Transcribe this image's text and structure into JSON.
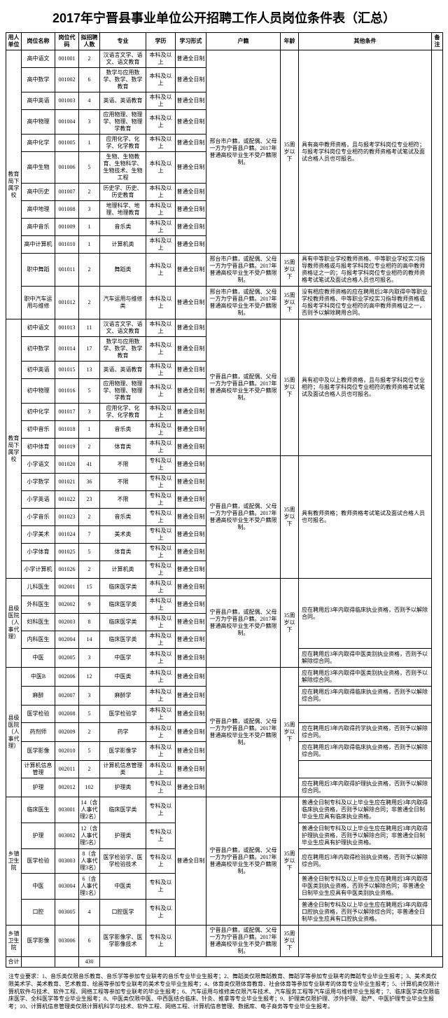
{
  "title": "2017年宁晋县事业单位公开招聘工作人员岗位条件表（汇总）",
  "headers": [
    "用人单位",
    "岗位名称",
    "岗位代码",
    "拟招聘人数",
    "专业",
    "学历",
    "学习形式",
    "户籍",
    "年龄",
    "其他条件",
    "备注"
  ],
  "edu_bk": "本科及以上",
  "edu_zk": "专科及以上",
  "study_full": "普通全日制",
  "age_35": "35周岁以下",
  "dept_edu": "教育局下属学校",
  "hukou_xt": "邢台市户籍，或配偶、父母一方为宁晋县户籍。2017年普通高校毕业生不受户籍限制。",
  "hukou_nj": "宁晋县户籍，或配偶、父母一方为宁晋县户籍。2017年普通高校毕业生不受户籍限制。",
  "other_gaozhong": "具有高中教师资格，且与报考学科岗位专业相符；与报考学科岗位专业相符的教师资格考试笔试及面试合格人员也可报名。",
  "other_wudao": "具有中等职业学校教师资格、中等职业学校实习指导教师资格或与报考学科岗位专业相符的高中教师资格证之一的；与报考学科岗位专业相符的教师资格考试笔试及面试合格人员也可报名。",
  "other_qiche": "没有相应教师资格的应在聘用后2年内取得中等职业学校教师资格、中等职业学校实习指导教师资格或与报考学科岗位专业相符的高中教师资格证之一，否则予以解除聘用合同。",
  "other_chuzhong": "具有初中及以上教师资格，且与报考学科岗位专业相符；与报考学科岗位专业相符的教师资格考试笔试及面试合格人员也可报名。",
  "other_xiaoxue": "具有教师资格；教师资格考试笔试及面试合格人员也可报名。",
  "gaozhong": [
    {
      "post": "高中语文",
      "code": "001001",
      "num": "2",
      "major": "汉语言文学、语文、语文教育"
    },
    {
      "post": "高中数学",
      "code": "001002",
      "num": "6",
      "major": "数学与应用数学、数学、数学教育"
    },
    {
      "post": "高中英语",
      "code": "001003",
      "num": "4",
      "major": "英语、英语教育"
    },
    {
      "post": "高中物理",
      "code": "001004",
      "num": "3",
      "major": "应用物理、物理学、物理、物理学教育"
    },
    {
      "post": "高中化学",
      "code": "001005",
      "num": "1",
      "major": "应用化学、化学、化学教育"
    },
    {
      "post": "高中生物",
      "code": "001006",
      "num": "5",
      "major": "生物、生物教育、生物科学、生物技术、生物工程"
    },
    {
      "post": "高中历史",
      "code": "001007",
      "num": "2",
      "major": "历史学、历史、历史教育"
    },
    {
      "post": "高中地理",
      "code": "001008",
      "num": "3",
      "major": "地理科学、地理、地理教育"
    },
    {
      "post": "高中音乐",
      "code": "001009",
      "num": "1",
      "major": "音乐类"
    },
    {
      "post": "高中计算机",
      "code": "001010",
      "num": "1",
      "major": "计算机类"
    }
  ],
  "wudao": {
    "post": "职中舞蹈",
    "code": "001011",
    "num": "2",
    "major": "舞蹈类"
  },
  "qiche": {
    "post": "职中汽车运用与维修",
    "code": "001012",
    "num": "2",
    "major": "汽车运用与维修类"
  },
  "chuzhong": [
    {
      "post": "初中语文",
      "code": "001013",
      "num": "11",
      "major": "汉语言文学、语文、语文教育"
    },
    {
      "post": "初中数学",
      "code": "001014",
      "num": "17",
      "major": "数学与应用数学、数学、数学教育"
    },
    {
      "post": "初中英语",
      "code": "001015",
      "num": "13",
      "major": "英语、英语教育"
    },
    {
      "post": "初中物理",
      "code": "001016",
      "num": "5",
      "major": "应用物理、物理学、物理、物理学教育"
    },
    {
      "post": "初中化学",
      "code": "001017",
      "num": "3",
      "major": "应用化学、化学、化学教育"
    },
    {
      "post": "初中音乐",
      "code": "001018",
      "num": "1",
      "major": "音乐类"
    },
    {
      "post": "初中体育",
      "code": "001019",
      "num": "2",
      "major": "体育类"
    }
  ],
  "xiaoxue": [
    {
      "post": "小学语文",
      "code": "001020",
      "num": "41",
      "major": "不限"
    },
    {
      "post": "小学数学",
      "code": "001021",
      "num": "36",
      "major": "不限"
    },
    {
      "post": "小学英语",
      "code": "001022",
      "num": "23",
      "major": "不限"
    },
    {
      "post": "小学音乐",
      "code": "001023",
      "num": "2",
      "major": "音乐类"
    },
    {
      "post": "小学美术",
      "code": "001024",
      "num": "7",
      "major": "美术类"
    },
    {
      "post": "小学体育",
      "code": "001025",
      "num": "5",
      "major": "体育类"
    },
    {
      "post": "小学计算机",
      "code": "001026",
      "num": "2",
      "major": "计算机类"
    }
  ],
  "dept_hosp1": "县级医院（人事代理）",
  "hosp1_a": [
    {
      "post": "儿科医生",
      "code": "002001",
      "num": "15",
      "major": "临床医学类"
    },
    {
      "post": "外科医生",
      "code": "002002",
      "num": "9",
      "major": "临床医学类"
    },
    {
      "post": "妇科医生",
      "code": "002003",
      "num": "8",
      "major": "临床医学类"
    },
    {
      "post": "内科医生",
      "code": "002004",
      "num": "14",
      "major": "临床医学类"
    }
  ],
  "other_hosp_linchuang": "应在聘用后3年内取得临床执业资格，否则予以解除合同。",
  "hosp1_zy": {
    "post": "中医",
    "code": "002005",
    "num": "3",
    "major": "中医学"
  },
  "other_hosp_zhongyi1": "应在聘用后3年内取得中医类别执业资格，否则予以解除综合同。",
  "hosp2_a": [
    {
      "post": "中医B",
      "code": "002006",
      "num": "12",
      "major": "中医类",
      "other": "应在聘用后3年内取得中医类别执业资格，否则予以解除综合同。"
    },
    {
      "post": "麻醉",
      "code": "002007",
      "num": "3",
      "major": "麻醉学",
      "other": "应在聘用后3年内取得临床执业资格，否则予以解除综合同。"
    },
    {
      "post": "医学检验",
      "code": "002008",
      "num": "5",
      "major": "医学检验学",
      "other": ""
    },
    {
      "post": "药剂师",
      "code": "002009",
      "num": "2",
      "major": "药学",
      "other": "应在聘用后3年内取得药学执业资格，否则予以解除综合同。"
    },
    {
      "post": "医学影像",
      "code": "002010",
      "num": "5",
      "major": "医学影像学",
      "other": "应在聘用后3年内取得临床执业资格，否则予以解除综合同。"
    },
    {
      "post": "计算机信息管理",
      "code": "002011",
      "num": "2",
      "major": "计算机信息管理类",
      "other": ""
    },
    {
      "post": "护理",
      "code": "002012",
      "num": "102",
      "major": "护理类",
      "edu": "专科及以上",
      "other": "应在聘用后3年内取得护理执业资格，否则予以解除综合同。"
    }
  ],
  "dept_township": "乡镇卫生院",
  "township": [
    {
      "post": "临床医生",
      "code": "003001",
      "num": "14（含人事代理2名）",
      "major": "临床医学类",
      "other": "普通全日制专科及以上毕业生应在聘用后3年内取得临床执业资格，否则予以解除合同；非普通全日制毕业生应具有临床执业资格。"
    },
    {
      "post": "护理",
      "code": "003002",
      "num": "12（含人事代理5名）",
      "major": "护理类",
      "other": "普通全日制专科及以上毕业生应在聘用后3年内取得护理执业资格，否则予以解除合同；非普通全日制毕业生应具有护理执业资格。"
    },
    {
      "post": "医学检验",
      "code": "003003",
      "num": "8（含人事代理3名）",
      "major": "医学检验学、医学检验技术",
      "other": "应在聘用后3年内取得检验执业资格，否则予以解除综合同。"
    },
    {
      "post": "中医",
      "code": "003004",
      "num": "6（含人事代理1名）",
      "major": "中医类",
      "other": "普通全日制专科及以上毕业生应在聘用后3年内取得中医类别执业资格，否则予以解除合同；非普通全日制毕业生应具有中医类别执业资格。"
    },
    {
      "post": "口腔",
      "code": "003005",
      "num": "4",
      "major": "口腔医学",
      "other": "普通全日制专科及以上毕业生应在聘用后3年内取得口腔执业资格，否则予以解除综合同；非普通全日制毕业生应具有口腔执业资格。"
    }
  ],
  "dept_township2": "乡镇卫生院",
  "township2": {
    "post": "医学影像",
    "code": "003006",
    "num": "6",
    "major": "医学影像学、医学影像技术"
  },
  "total_label": "合计",
  "total_num": "430",
  "footnote": "注专业要求：1、音乐类仅限音乐教育、音乐学等参加专业联考的音乐专业毕业生报考；2、舞蹈类仅限舞蹈教育、舞蹈学等参加专业联考的舞蹈专业毕业生报考；3、美术类仅限美术学、美术教育、艺术教育、绘画等参加专业联考的美术专业毕业生报考；4、体育类仅限体育教育、社会体育等参加专业联考的体育专业毕业生报考；5、计算机类仅限计算机软件与技术、软件工程、网络工程等参加专业联考的毕业生报考；6、汽车运用与维修类仅限汽车技术、汽车服务工程等汽车运用与维修毕业生报考；7、临床医学类仅限临床医学、全科医学等专业毕业生报考；8、中医类仅限中医、中西医结合临床、针灸、推拿等专业毕业生报考；9、护理类仅限护理、涉外护理、助产、中医护理专业毕业生报考；10、计算机信息管理类仅限计算机科学与技术、软件工程、网络工程、计算机信息管理、数据库、电子商务等专业毕业生报考。"
}
